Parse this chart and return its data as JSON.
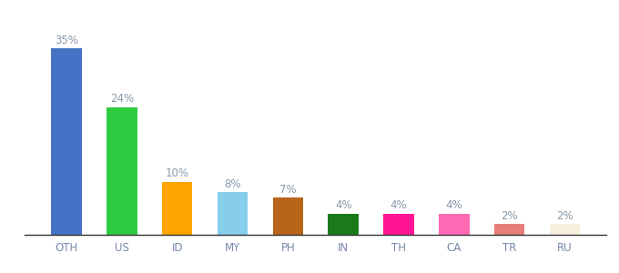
{
  "categories": [
    "OTH",
    "US",
    "ID",
    "MY",
    "PH",
    "IN",
    "TH",
    "CA",
    "TR",
    "RU"
  ],
  "values": [
    35,
    24,
    10,
    8,
    7,
    4,
    4,
    4,
    2,
    2
  ],
  "labels": [
    "35%",
    "24%",
    "10%",
    "8%",
    "7%",
    "4%",
    "4%",
    "4%",
    "2%",
    "2%"
  ],
  "bar_colors": [
    "#4472C4",
    "#2ECC40",
    "#FFA500",
    "#87CEEB",
    "#B8651A",
    "#1A7A1A",
    "#FF1493",
    "#FF69B4",
    "#E8807A",
    "#F5F0DC"
  ],
  "background_color": "#ffffff",
  "label_color": "#8899AA",
  "tick_color": "#7788AA",
  "label_fontsize": 8.5,
  "tick_fontsize": 8.5,
  "ylim": [
    0,
    40
  ],
  "bar_width": 0.55
}
